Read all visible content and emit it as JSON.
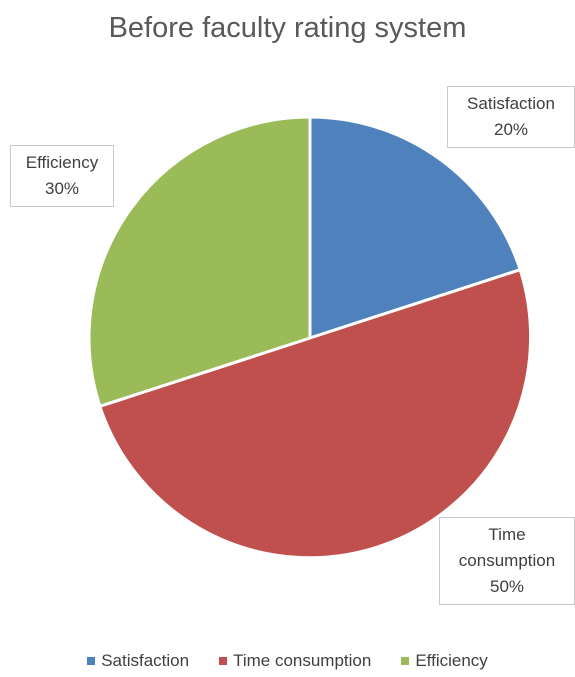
{
  "chart_data": {
    "type": "pie",
    "title": "Before faculty rating system",
    "slices": [
      {
        "name": "Satisfaction",
        "value": 20,
        "label": "20%",
        "color": "#4f81bd"
      },
      {
        "name": "Time consumption",
        "value": 50,
        "label": "50%",
        "color": "#c0504d"
      },
      {
        "name": "Efficiency",
        "value": 30,
        "label": "30%",
        "color": "#9bbb59"
      }
    ],
    "legend": {
      "position": "bottom",
      "entries": [
        "Satisfaction",
        "Time consumption",
        "Efficiency"
      ]
    }
  }
}
